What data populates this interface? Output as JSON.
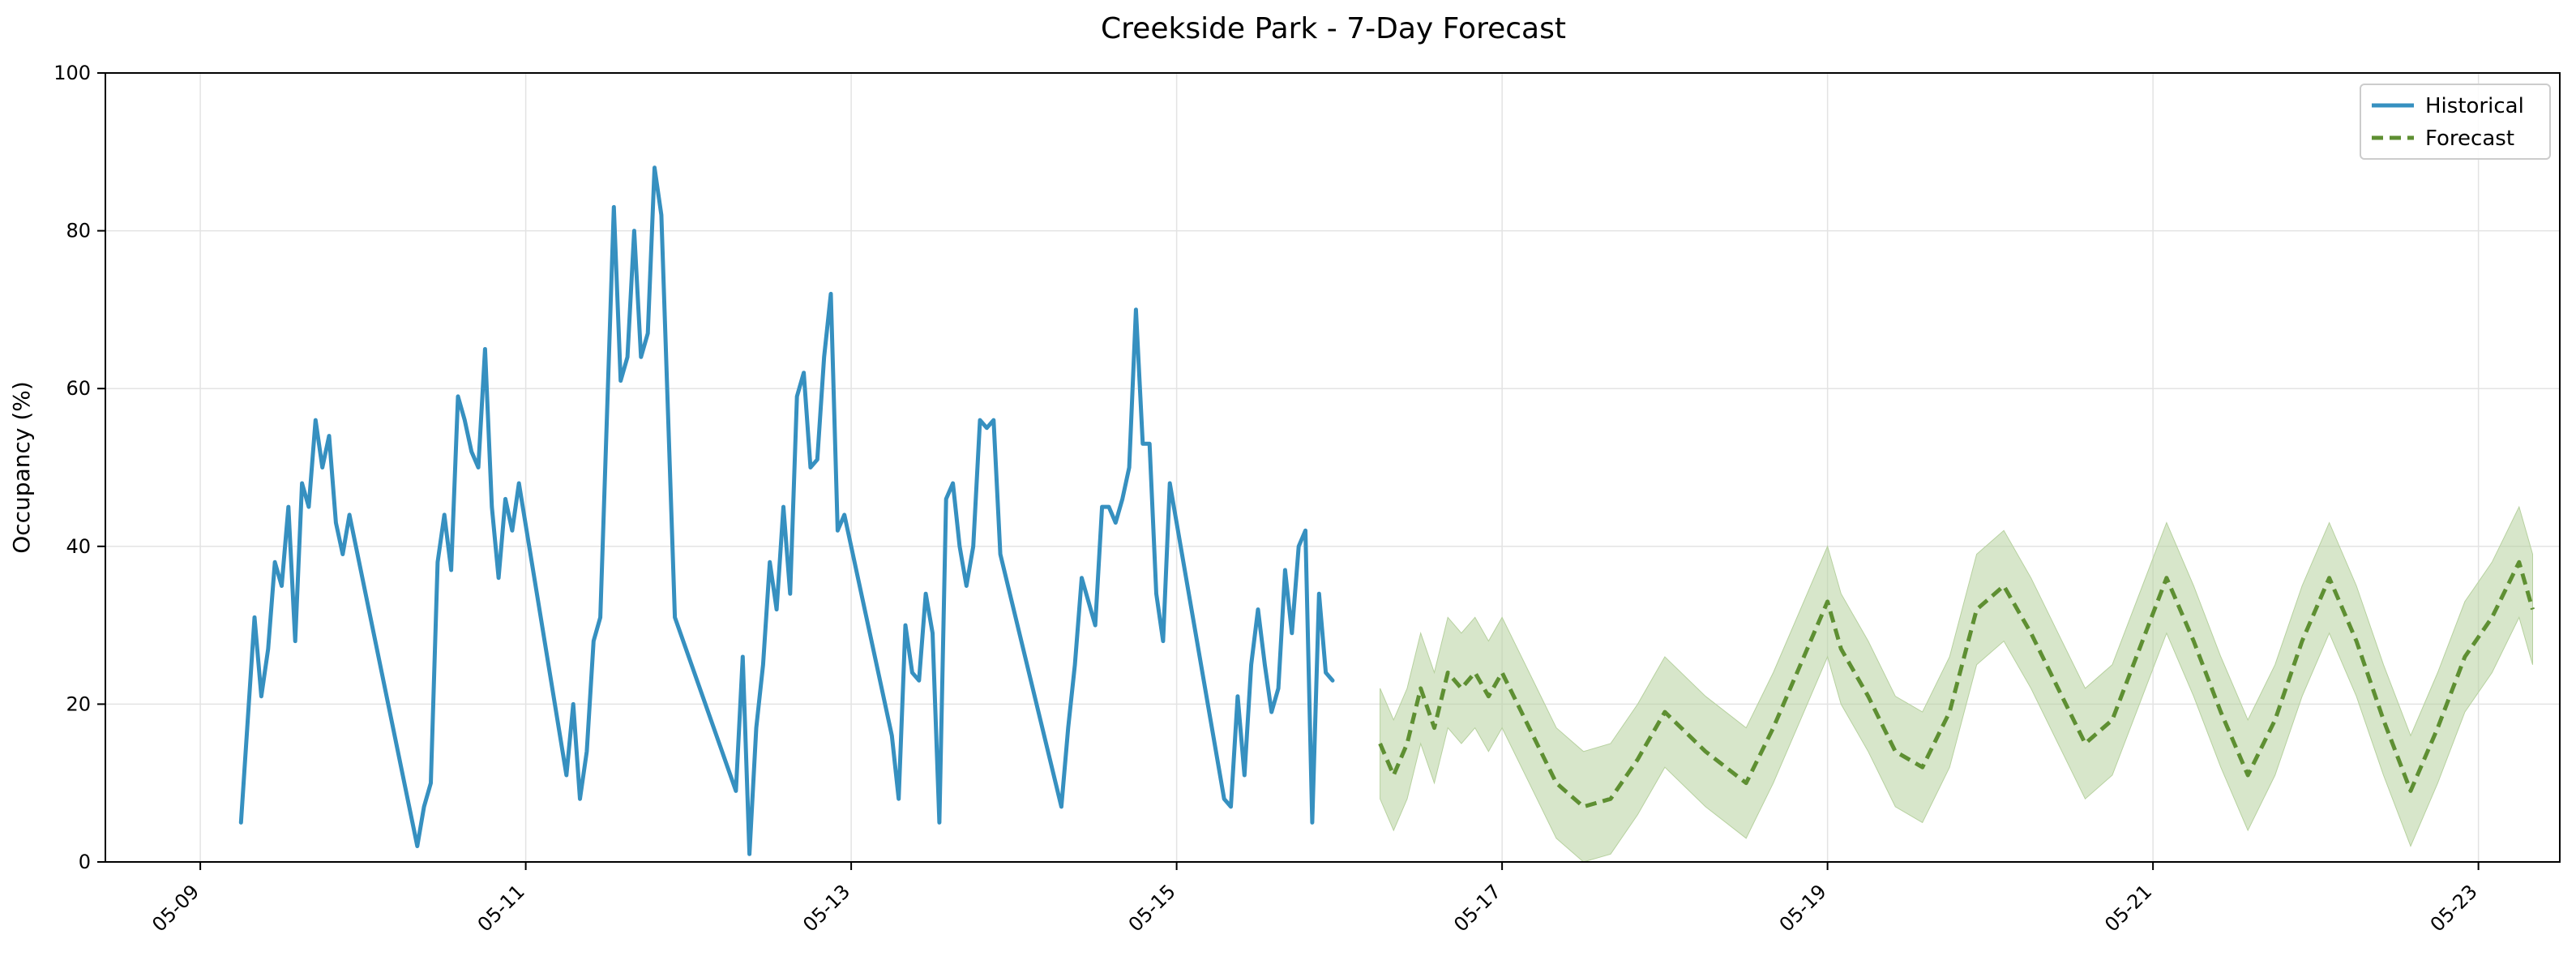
{
  "chart_data": {
    "type": "line",
    "title": "Creekside Park - 7-Day Forecast",
    "xlabel": "",
    "ylabel": "Occupancy (%)",
    "ylim": [
      0,
      100
    ],
    "xlim": [
      "2024-05-08 10:00",
      "2024-05-23 12:00"
    ],
    "yticks": [
      0,
      20,
      40,
      60,
      80,
      100
    ],
    "xticks": [
      {
        "label": "05-09",
        "value": "2024-05-09 00:00"
      },
      {
        "label": "05-11",
        "value": "2024-05-11 00:00"
      },
      {
        "label": "05-13",
        "value": "2024-05-13 00:00"
      },
      {
        "label": "05-15",
        "value": "2024-05-15 00:00"
      },
      {
        "label": "05-17",
        "value": "2024-05-17 00:00"
      },
      {
        "label": "05-19",
        "value": "2024-05-19 00:00"
      },
      {
        "label": "05-21",
        "value": "2024-05-21 00:00"
      },
      {
        "label": "05-23",
        "value": "2024-05-23 00:00"
      }
    ],
    "grid": true,
    "legend_position": "top-right",
    "colors": {
      "historical": "#3690c0",
      "forecast": "#5e8f32",
      "band": "#b7d19f"
    },
    "series": [
      {
        "name": "Historical",
        "style": "solid",
        "points": [
          [
            "2024-05-09 06:00",
            5
          ],
          [
            "2024-05-09 08:00",
            31
          ],
          [
            "2024-05-09 09:00",
            21
          ],
          [
            "2024-05-09 10:00",
            27
          ],
          [
            "2024-05-09 11:00",
            38
          ],
          [
            "2024-05-09 12:00",
            35
          ],
          [
            "2024-05-09 13:00",
            45
          ],
          [
            "2024-05-09 14:00",
            28
          ],
          [
            "2024-05-09 15:00",
            48
          ],
          [
            "2024-05-09 16:00",
            45
          ],
          [
            "2024-05-09 17:00",
            56
          ],
          [
            "2024-05-09 18:00",
            50
          ],
          [
            "2024-05-09 19:00",
            54
          ],
          [
            "2024-05-09 20:00",
            43
          ],
          [
            "2024-05-09 21:00",
            39
          ],
          [
            "2024-05-09 22:00",
            44
          ],
          [
            "2024-05-10 08:00",
            2
          ],
          [
            "2024-05-10 09:00",
            7
          ],
          [
            "2024-05-10 10:00",
            10
          ],
          [
            "2024-05-10 11:00",
            38
          ],
          [
            "2024-05-10 12:00",
            44
          ],
          [
            "2024-05-10 13:00",
            37
          ],
          [
            "2024-05-10 14:00",
            59
          ],
          [
            "2024-05-10 15:00",
            56
          ],
          [
            "2024-05-10 16:00",
            52
          ],
          [
            "2024-05-10 17:00",
            50
          ],
          [
            "2024-05-10 18:00",
            65
          ],
          [
            "2024-05-10 19:00",
            45
          ],
          [
            "2024-05-10 20:00",
            36
          ],
          [
            "2024-05-10 21:00",
            46
          ],
          [
            "2024-05-10 22:00",
            42
          ],
          [
            "2024-05-10 23:00",
            48
          ],
          [
            "2024-05-11 06:00",
            11
          ],
          [
            "2024-05-11 07:00",
            20
          ],
          [
            "2024-05-11 08:00",
            8
          ],
          [
            "2024-05-11 09:00",
            14
          ],
          [
            "2024-05-11 10:00",
            28
          ],
          [
            "2024-05-11 11:00",
            31
          ],
          [
            "2024-05-11 13:00",
            83
          ],
          [
            "2024-05-11 14:00",
            61
          ],
          [
            "2024-05-11 15:00",
            64
          ],
          [
            "2024-05-11 16:00",
            80
          ],
          [
            "2024-05-11 17:00",
            64
          ],
          [
            "2024-05-11 18:00",
            67
          ],
          [
            "2024-05-11 19:00",
            88
          ],
          [
            "2024-05-11 20:00",
            82
          ],
          [
            "2024-05-11 22:00",
            31
          ],
          [
            "2024-05-12 07:00",
            9
          ],
          [
            "2024-05-12 08:00",
            26
          ],
          [
            "2024-05-12 09:00",
            1
          ],
          [
            "2024-05-12 10:00",
            17
          ],
          [
            "2024-05-12 11:00",
            25
          ],
          [
            "2024-05-12 12:00",
            38
          ],
          [
            "2024-05-12 13:00",
            32
          ],
          [
            "2024-05-12 14:00",
            45
          ],
          [
            "2024-05-12 15:00",
            34
          ],
          [
            "2024-05-12 16:00",
            59
          ],
          [
            "2024-05-12 17:00",
            62
          ],
          [
            "2024-05-12 18:00",
            50
          ],
          [
            "2024-05-12 19:00",
            51
          ],
          [
            "2024-05-12 20:00",
            64
          ],
          [
            "2024-05-12 21:00",
            72
          ],
          [
            "2024-05-12 22:00",
            42
          ],
          [
            "2024-05-12 23:00",
            44
          ],
          [
            "2024-05-13 06:00",
            16
          ],
          [
            "2024-05-13 07:00",
            8
          ],
          [
            "2024-05-13 08:00",
            30
          ],
          [
            "2024-05-13 09:00",
            24
          ],
          [
            "2024-05-13 10:00",
            23
          ],
          [
            "2024-05-13 11:00",
            34
          ],
          [
            "2024-05-13 12:00",
            29
          ],
          [
            "2024-05-13 13:00",
            5
          ],
          [
            "2024-05-13 14:00",
            46
          ],
          [
            "2024-05-13 15:00",
            48
          ],
          [
            "2024-05-13 16:00",
            40
          ],
          [
            "2024-05-13 17:00",
            35
          ],
          [
            "2024-05-13 18:00",
            40
          ],
          [
            "2024-05-13 19:00",
            56
          ],
          [
            "2024-05-13 20:00",
            55
          ],
          [
            "2024-05-13 21:00",
            56
          ],
          [
            "2024-05-13 22:00",
            39
          ],
          [
            "2024-05-14 07:00",
            7
          ],
          [
            "2024-05-14 08:00",
            17
          ],
          [
            "2024-05-14 09:00",
            25
          ],
          [
            "2024-05-14 10:00",
            36
          ],
          [
            "2024-05-14 12:00",
            30
          ],
          [
            "2024-05-14 13:00",
            45
          ],
          [
            "2024-05-14 14:00",
            45
          ],
          [
            "2024-05-14 15:00",
            43
          ],
          [
            "2024-05-14 16:00",
            46
          ],
          [
            "2024-05-14 17:00",
            50
          ],
          [
            "2024-05-14 18:00",
            70
          ],
          [
            "2024-05-14 19:00",
            53
          ],
          [
            "2024-05-14 20:00",
            53
          ],
          [
            "2024-05-14 21:00",
            34
          ],
          [
            "2024-05-14 22:00",
            28
          ],
          [
            "2024-05-14 23:00",
            48
          ],
          [
            "2024-05-15 07:00",
            8
          ],
          [
            "2024-05-15 08:00",
            7
          ],
          [
            "2024-05-15 09:00",
            21
          ],
          [
            "2024-05-15 10:00",
            11
          ],
          [
            "2024-05-15 11:00",
            25
          ],
          [
            "2024-05-15 12:00",
            32
          ],
          [
            "2024-05-15 13:00",
            25
          ],
          [
            "2024-05-15 14:00",
            19
          ],
          [
            "2024-05-15 15:00",
            22
          ],
          [
            "2024-05-15 16:00",
            37
          ],
          [
            "2024-05-15 17:00",
            29
          ],
          [
            "2024-05-15 18:00",
            40
          ],
          [
            "2024-05-15 19:00",
            42
          ],
          [
            "2024-05-15 20:00",
            5
          ],
          [
            "2024-05-15 21:00",
            34
          ],
          [
            "2024-05-15 22:00",
            24
          ],
          [
            "2024-05-15 23:00",
            23
          ]
        ]
      },
      {
        "name": "Forecast",
        "style": "dashed",
        "points": [
          [
            "2024-05-16 06:00",
            15
          ],
          [
            "2024-05-16 08:00",
            11
          ],
          [
            "2024-05-16 10:00",
            15
          ],
          [
            "2024-05-16 12:00",
            22
          ],
          [
            "2024-05-16 14:00",
            17
          ],
          [
            "2024-05-16 16:00",
            24
          ],
          [
            "2024-05-16 18:00",
            22
          ],
          [
            "2024-05-16 20:00",
            24
          ],
          [
            "2024-05-16 22:00",
            21
          ],
          [
            "2024-05-17 00:00",
            24
          ],
          [
            "2024-05-17 04:00",
            17
          ],
          [
            "2024-05-17 08:00",
            10
          ],
          [
            "2024-05-17 12:00",
            7
          ],
          [
            "2024-05-17 16:00",
            8
          ],
          [
            "2024-05-17 20:00",
            13
          ],
          [
            "2024-05-18 00:00",
            19
          ],
          [
            "2024-05-18 06:00",
            14
          ],
          [
            "2024-05-18 12:00",
            10
          ],
          [
            "2024-05-18 16:00",
            17
          ],
          [
            "2024-05-18 20:00",
            25
          ],
          [
            "2024-05-19 00:00",
            33
          ],
          [
            "2024-05-19 02:00",
            27
          ],
          [
            "2024-05-19 06:00",
            21
          ],
          [
            "2024-05-19 10:00",
            14
          ],
          [
            "2024-05-19 14:00",
            12
          ],
          [
            "2024-05-19 18:00",
            19
          ],
          [
            "2024-05-19 22:00",
            32
          ],
          [
            "2024-05-20 02:00",
            35
          ],
          [
            "2024-05-20 06:00",
            29
          ],
          [
            "2024-05-20 10:00",
            22
          ],
          [
            "2024-05-20 14:00",
            15
          ],
          [
            "2024-05-20 18:00",
            18
          ],
          [
            "2024-05-20 22:00",
            27
          ],
          [
            "2024-05-21 02:00",
            36
          ],
          [
            "2024-05-21 06:00",
            28
          ],
          [
            "2024-05-21 10:00",
            19
          ],
          [
            "2024-05-21 14:00",
            11
          ],
          [
            "2024-05-21 18:00",
            18
          ],
          [
            "2024-05-21 22:00",
            28
          ],
          [
            "2024-05-22 02:00",
            36
          ],
          [
            "2024-05-22 06:00",
            28
          ],
          [
            "2024-05-22 10:00",
            18
          ],
          [
            "2024-05-22 14:00",
            9
          ],
          [
            "2024-05-22 18:00",
            17
          ],
          [
            "2024-05-22 22:00",
            26
          ],
          [
            "2024-05-23 02:00",
            31
          ],
          [
            "2024-05-23 06:00",
            38
          ],
          [
            "2024-05-23 08:00",
            32
          ]
        ],
        "band_halfwidth": 7
      }
    ]
  }
}
